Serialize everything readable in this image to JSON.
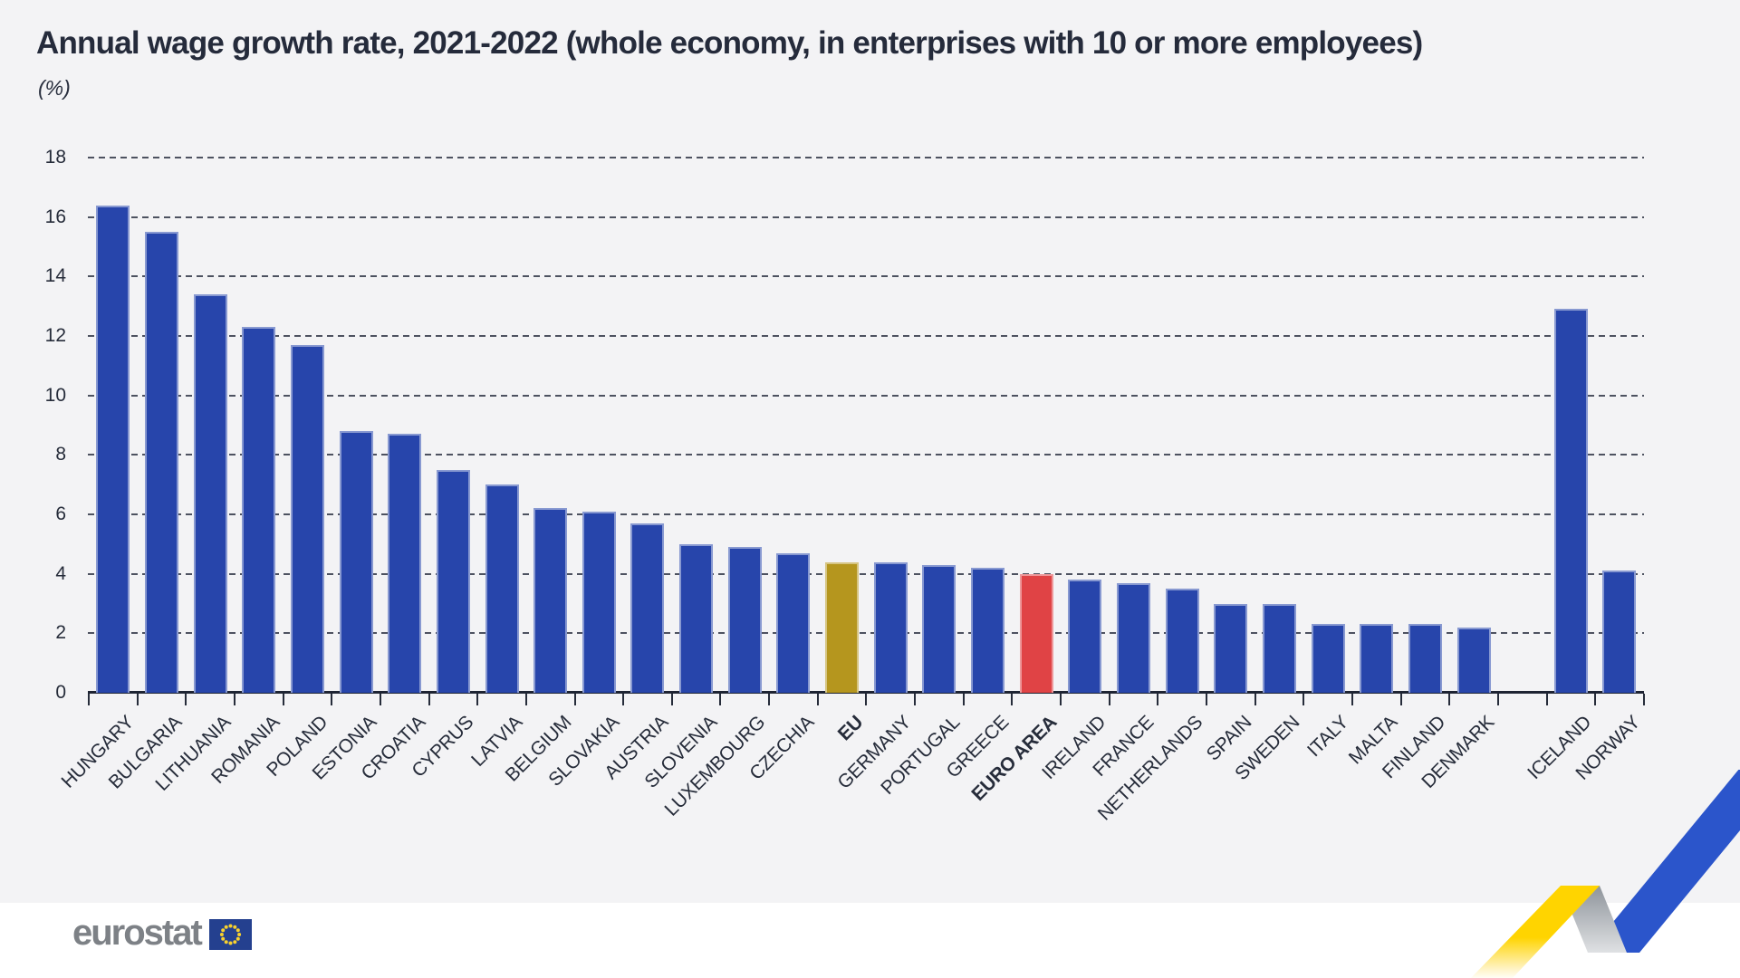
{
  "title": "Annual wage growth rate, 2021-2022 (whole economy, in enterprises with 10 or more employees)",
  "subtitle": "(%)",
  "logo": {
    "text": "eurostat"
  },
  "colors": {
    "background": "#f3f3f5",
    "footer_band": "#ffffff",
    "bar_default": "#2745ab",
    "bar_eu": "#b5961e",
    "bar_euro_area": "#e04345",
    "axis_text": "#262c3a",
    "ribbon_yellow": "#ffd400",
    "ribbon_gray": "#9ba1a8",
    "ribbon_blue": "#2b55cb"
  },
  "chart_data": {
    "type": "bar",
    "title": "Annual wage growth rate, 2021-2022 (whole economy, in enterprises with 10 or more employees)",
    "ylabel": "(%)",
    "unit": "%",
    "ylim": [
      0,
      18
    ],
    "ytick_step": 2,
    "grid": "horizontal-dashed",
    "legend": "none",
    "categories": [
      "HUNGARY",
      "BULGARIA",
      "LITHUANIA",
      "ROMANIA",
      "POLAND",
      "ESTONIA",
      "CROATIA",
      "CYPRUS",
      "LATVIA",
      "BELGIUM",
      "SLOVAKIA",
      "AUSTRIA",
      "SLOVENIA",
      "LUXEMBOURG",
      "CZECHIA",
      "EU",
      "GERMANY",
      "PORTUGAL",
      "GREECE",
      "EURO AREA",
      "IRELAND",
      "FRANCE",
      "NETHERLANDS",
      "SPAIN",
      "SWEDEN",
      "ITALY",
      "MALTA",
      "FINLAND",
      "DENMARK",
      "",
      "ICELAND",
      "NORWAY"
    ],
    "values": [
      16.4,
      15.5,
      13.4,
      12.3,
      11.7,
      8.8,
      8.7,
      7.5,
      7.0,
      6.2,
      6.1,
      5.7,
      5.0,
      4.9,
      4.7,
      4.4,
      4.4,
      4.3,
      4.2,
      4.0,
      3.8,
      3.7,
      3.5,
      3.0,
      3.0,
      2.3,
      2.3,
      2.3,
      2.2,
      null,
      12.9,
      4.1
    ],
    "highlight_colors": {
      "EU": "#b5961e",
      "EURO AREA": "#e04345"
    },
    "bold_categories": [
      "EU",
      "EURO AREA"
    ],
    "gap_between": [
      "DENMARK",
      "ICELAND"
    ]
  }
}
